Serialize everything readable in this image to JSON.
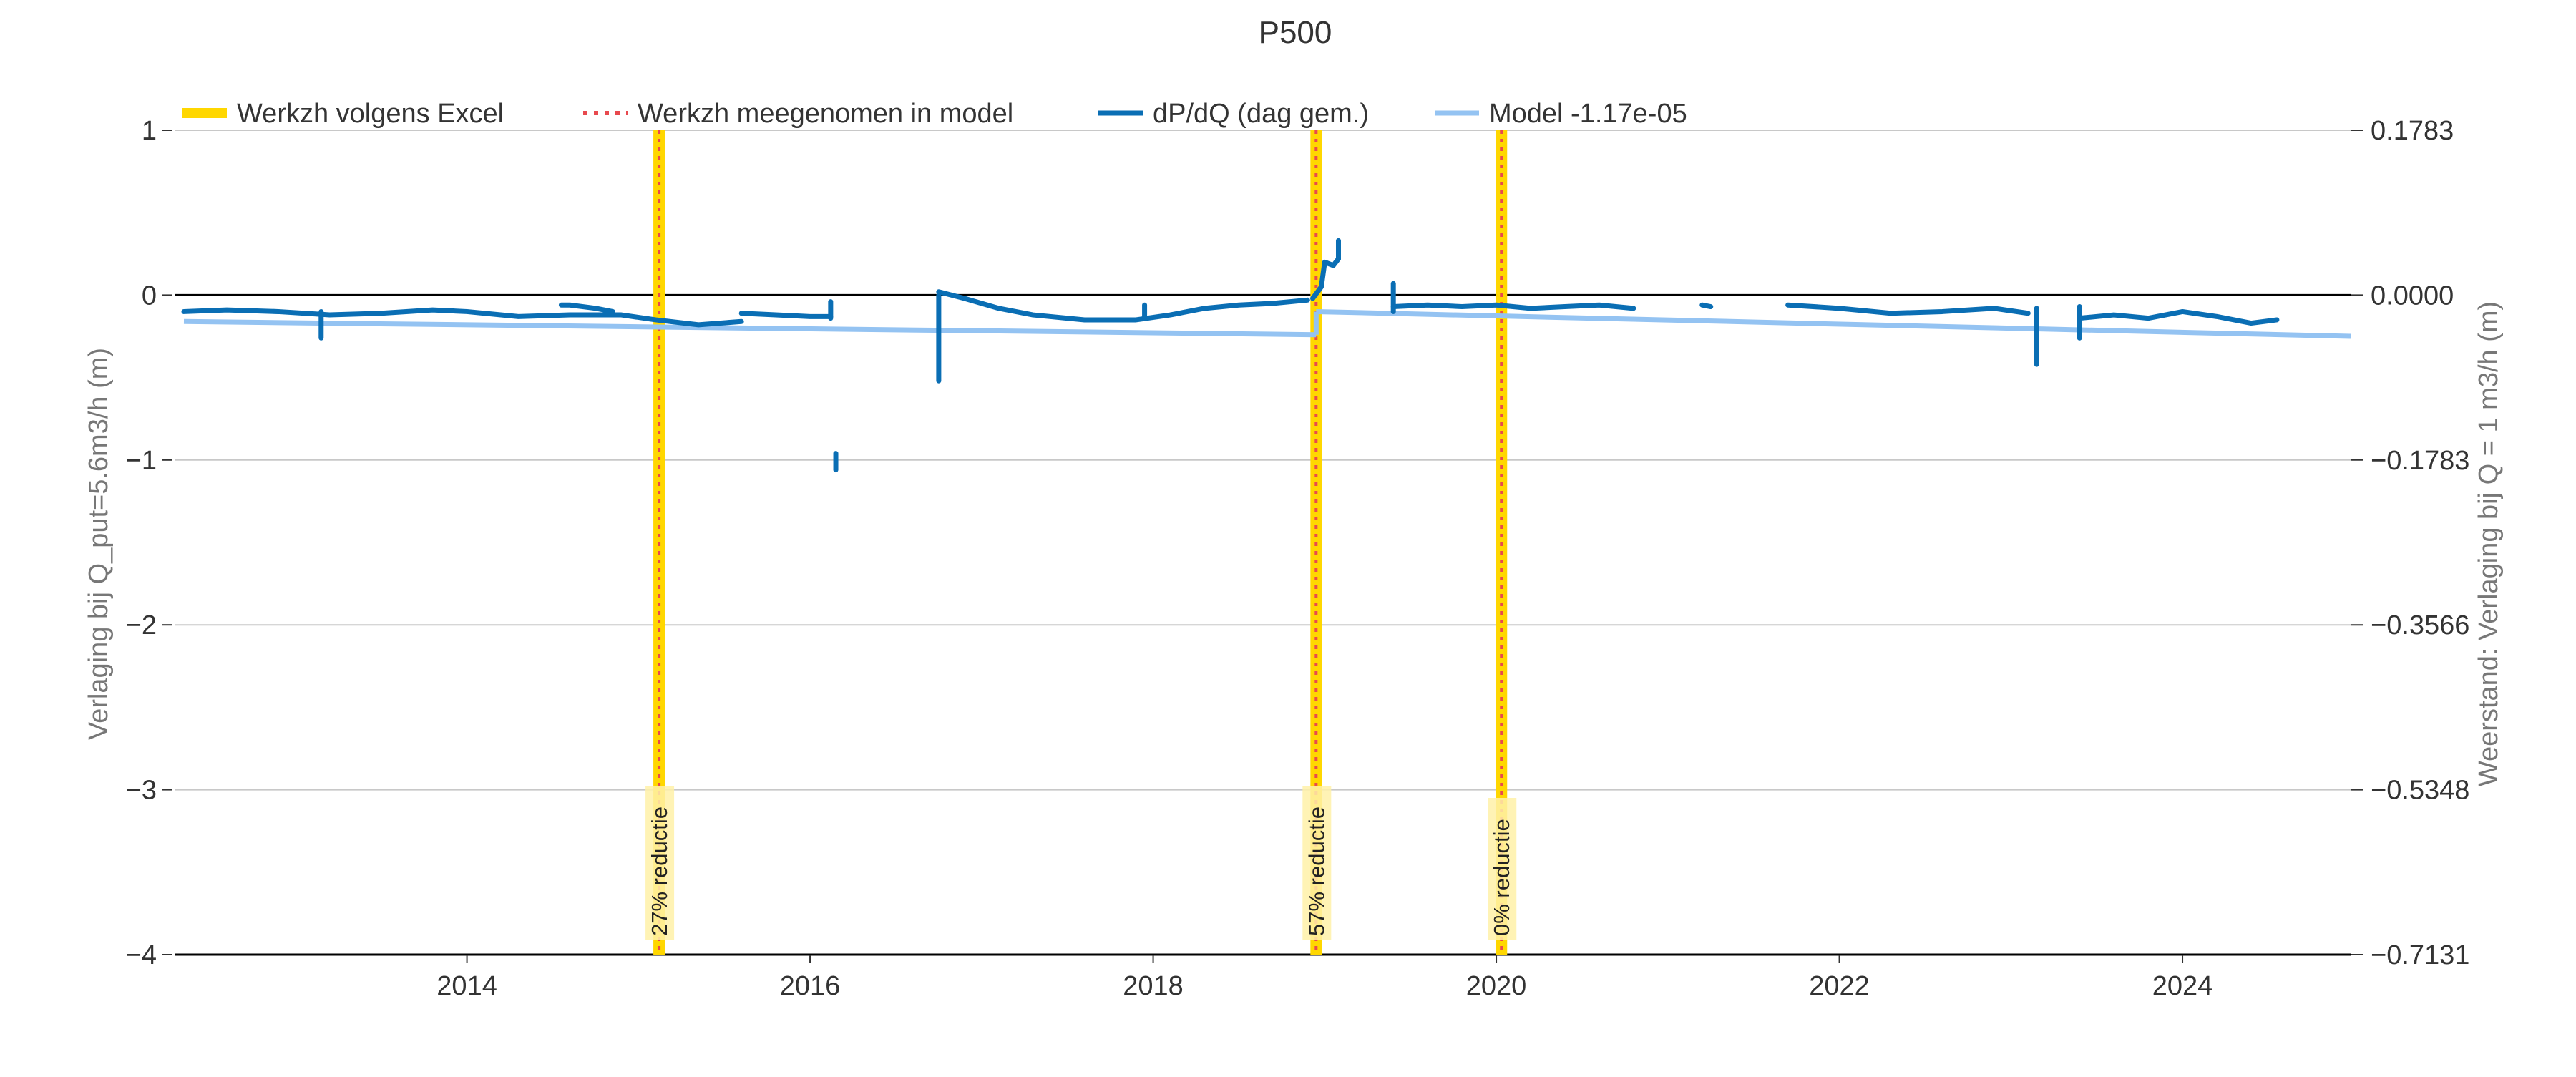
{
  "chart_data": {
    "type": "line",
    "title": "P500",
    "ylabel_left": "Verlaging bij Q_put=5.6m3/h (m)",
    "ylabel_right": "Weerstand: Verlaging bij Q = 1 m3/h (m)",
    "xlim": [
      2012.3,
      2024.98
    ],
    "ylim": [
      -4,
      1
    ],
    "xticks": [
      2014,
      2016,
      2018,
      2020,
      2022,
      2024
    ],
    "yticks_left": [
      1,
      0,
      -1,
      -2,
      -3,
      -4
    ],
    "yticks_left_labels": [
      "1",
      "0",
      "−1",
      "−2",
      "−3",
      "−4"
    ],
    "yticks_right_labels": [
      "0.1783",
      "0.0000",
      "−0.1783",
      "−0.3566",
      "−0.5348",
      "−0.7131"
    ],
    "grid": true,
    "legend_position": "top-left",
    "legend": [
      {
        "label": "Werkzh volgens Excel",
        "color": "#ffd700",
        "style": "band"
      },
      {
        "label": "Werkzh meegenomen in model",
        "color": "#e8494e",
        "style": "dotted"
      },
      {
        "label": "dP/dQ (dag gem.)",
        "color": "#0a6eb4",
        "style": "line"
      },
      {
        "label": "Model -1.17e-05",
        "color": "#94c3f2",
        "style": "line"
      }
    ],
    "events": [
      {
        "x": 2015.12,
        "label": "27% reductie"
      },
      {
        "x": 2018.95,
        "label": "57% reductie"
      },
      {
        "x": 2020.03,
        "label": "0% reductie"
      }
    ],
    "model_segments": [
      {
        "x": [
          2012.35,
          2018.95
        ],
        "y": [
          -0.16,
          -0.24
        ]
      },
      {
        "x": [
          2018.95,
          2024.98
        ],
        "y": [
          -0.1,
          -0.25
        ]
      }
    ],
    "series": [
      {
        "name": "dP/dQ (dag gem.)",
        "segments": [
          {
            "x": [
              2012.35,
              2012.6,
              2012.9,
              2013.2,
              2013.5,
              2013.8,
              2014.0,
              2014.3,
              2014.6,
              2014.9,
              2015.1,
              2015.35,
              2015.6
            ],
            "y": [
              -0.1,
              -0.09,
              -0.1,
              -0.12,
              -0.11,
              -0.09,
              -0.1,
              -0.13,
              -0.12,
              -0.12,
              -0.15,
              -0.18,
              -0.16
            ]
          },
          {
            "x": [
              2013.15,
              2013.15
            ],
            "y": [
              -0.1,
              -0.26
            ]
          },
          {
            "x": [
              2014.55,
              2014.6,
              2014.75,
              2014.85
            ],
            "y": [
              -0.06,
              -0.06,
              -0.08,
              -0.1
            ]
          },
          {
            "x": [
              2015.6,
              2015.8,
              2016.0,
              2016.12
            ],
            "y": [
              -0.11,
              -0.12,
              -0.13,
              -0.13
            ]
          },
          {
            "x": [
              2016.12,
              2016.12
            ],
            "y": [
              -0.04,
              -0.14
            ]
          },
          {
            "x": [
              2016.15,
              2016.15
            ],
            "y": [
              -0.96,
              -1.06
            ]
          },
          {
            "x": [
              2016.75,
              2016.75
            ],
            "y": [
              -0.52,
              0.0
            ]
          },
          {
            "x": [
              2016.75,
              2016.9,
              2017.1,
              2017.3,
              2017.6,
              2017.9,
              2018.1,
              2018.3,
              2018.5,
              2018.7,
              2018.9
            ],
            "y": [
              0.02,
              -0.02,
              -0.08,
              -0.12,
              -0.15,
              -0.15,
              -0.12,
              -0.08,
              -0.06,
              -0.05,
              -0.03
            ]
          },
          {
            "x": [
              2017.95,
              2017.95
            ],
            "y": [
              -0.06,
              -0.14
            ]
          },
          {
            "x": [
              2018.93,
              2018.98,
              2019.0,
              2019.05,
              2019.08
            ],
            "y": [
              -0.02,
              0.05,
              0.2,
              0.18,
              0.22
            ]
          },
          {
            "x": [
              2019.08,
              2019.08
            ],
            "y": [
              0.22,
              0.33
            ]
          },
          {
            "x": [
              2019.4,
              2019.4
            ],
            "y": [
              -0.1,
              0.07
            ]
          },
          {
            "x": [
              2019.4,
              2019.6,
              2019.8,
              2020.0,
              2020.2,
              2020.4,
              2020.6,
              2020.8
            ],
            "y": [
              -0.07,
              -0.06,
              -0.07,
              -0.06,
              -0.08,
              -0.07,
              -0.06,
              -0.08
            ]
          },
          {
            "x": [
              2021.2,
              2021.25
            ],
            "y": [
              -0.06,
              -0.07
            ]
          },
          {
            "x": [
              2021.7,
              2022.0,
              2022.3,
              2022.6,
              2022.9,
              2023.1
            ],
            "y": [
              -0.06,
              -0.08,
              -0.11,
              -0.1,
              -0.08,
              -0.11
            ]
          },
          {
            "x": [
              2023.15,
              2023.15
            ],
            "y": [
              -0.08,
              -0.42
            ]
          },
          {
            "x": [
              2023.4,
              2023.4
            ],
            "y": [
              -0.07,
              -0.26
            ]
          },
          {
            "x": [
              2023.4,
              2023.6,
              2023.8,
              2024.0,
              2024.2,
              2024.4,
              2024.55
            ],
            "y": [
              -0.14,
              -0.12,
              -0.14,
              -0.1,
              -0.13,
              -0.17,
              -0.15
            ]
          }
        ]
      }
    ]
  }
}
